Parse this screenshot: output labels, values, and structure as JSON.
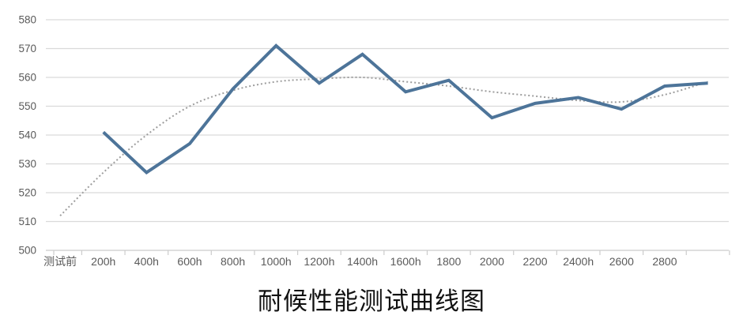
{
  "chart_data": {
    "type": "line",
    "title": "耐候性能测试曲线图",
    "categories": [
      "测试前",
      "200h",
      "400h",
      "600h",
      "800h",
      "1000h",
      "1200h",
      "1400h",
      "1600h",
      "1800",
      "2000",
      "2200",
      "2400h",
      "2600",
      "2800",
      ""
    ],
    "series": [
      {
        "id": "measured-line",
        "style": "solid",
        "color": "#4d7499",
        "stroke_width": 4,
        "values": [
          null,
          541,
          527,
          537,
          556,
          571,
          558,
          568,
          555,
          559,
          546,
          551,
          553,
          549,
          557,
          558
        ]
      },
      {
        "id": "trend-line",
        "style": "dotted",
        "color": "#9e9e9e",
        "stroke_width": 2,
        "values": [
          512,
          527,
          540,
          550,
          555.5,
          558.5,
          559.5,
          560,
          558.5,
          557,
          555,
          553.5,
          552,
          551.5,
          554,
          558.5
        ]
      }
    ],
    "ylim": [
      500,
      580
    ],
    "y_ticks": [
      500,
      510,
      520,
      530,
      540,
      550,
      560,
      570,
      580
    ],
    "grid": true,
    "legend_position": "none",
    "xlabel": "",
    "ylabel": ""
  },
  "colors": {
    "background": "#ffffff",
    "gridline": "#dadada",
    "axis": "#cccccc",
    "tick_label": "#5a5a5a",
    "title": "#111111"
  }
}
